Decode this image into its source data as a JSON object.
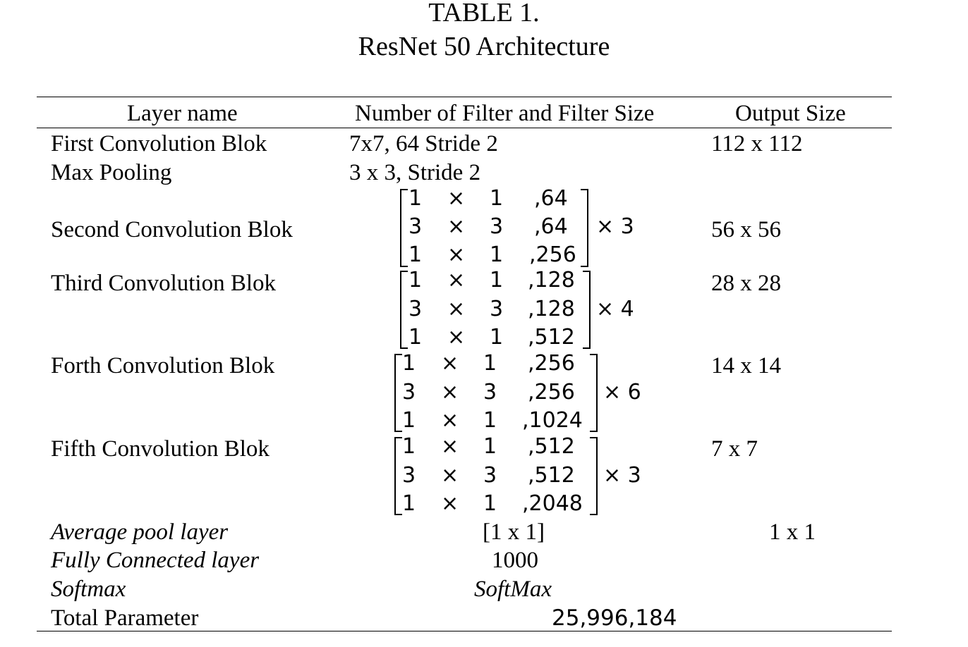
{
  "caption": {
    "label": "TABLE 1.",
    "title": "ResNet 50 Architecture"
  },
  "table": {
    "headers": [
      "Layer name",
      "Number of Filter and Filter Size",
      "Output Size"
    ],
    "rows": [
      {
        "layer": "First Convolution Blok",
        "filter": "7x7, 64 Stride 2",
        "output": "112 x 112"
      },
      {
        "layer": "Max Pooling",
        "filter": "3 x 3, Stride 2",
        "output": ""
      },
      {
        "layer": "Second Convolution Blok",
        "matrix": [
          [
            "1",
            "×",
            "1",
            ",64"
          ],
          [
            "3",
            "×",
            "3",
            ",64"
          ],
          [
            "1",
            "×",
            "1",
            ",256"
          ]
        ],
        "repeat": "× 3",
        "output": "56 x 56"
      },
      {
        "layer": "Third Convolution Blok",
        "matrix": [
          [
            "1",
            "×",
            "1",
            ",128"
          ],
          [
            "3",
            "×",
            "3",
            ",128"
          ],
          [
            "1",
            "×",
            "1",
            ",512"
          ]
        ],
        "repeat": "× 4",
        "output": "28 x 28"
      },
      {
        "layer": "Forth Convolution Blok",
        "matrix": [
          [
            "1",
            "×",
            "1",
            ",256"
          ],
          [
            "3",
            "×",
            "3",
            ",256"
          ],
          [
            "1",
            "×",
            "1",
            ",1024"
          ]
        ],
        "repeat": "× 6",
        "output": "14 x 14"
      },
      {
        "layer": "Fifth Convolution Blok",
        "matrix": [
          [
            "1",
            "×",
            "1",
            ",512"
          ],
          [
            "3",
            "×",
            "3",
            ",512"
          ],
          [
            "1",
            "×",
            "1",
            ",2048"
          ]
        ],
        "repeat": "× 3",
        "output": "7 x 7"
      },
      {
        "layer": "Average pool layer",
        "filter": "[1 x 1]",
        "output": "1 x 1"
      },
      {
        "layer": "Fully Connected layer",
        "filter": "1000",
        "output": ""
      },
      {
        "layer": "Softmax",
        "filter": "SoftMax",
        "output": ""
      },
      {
        "layer": "Total Parameter",
        "filter": "25,996,184",
        "output": ""
      }
    ]
  }
}
